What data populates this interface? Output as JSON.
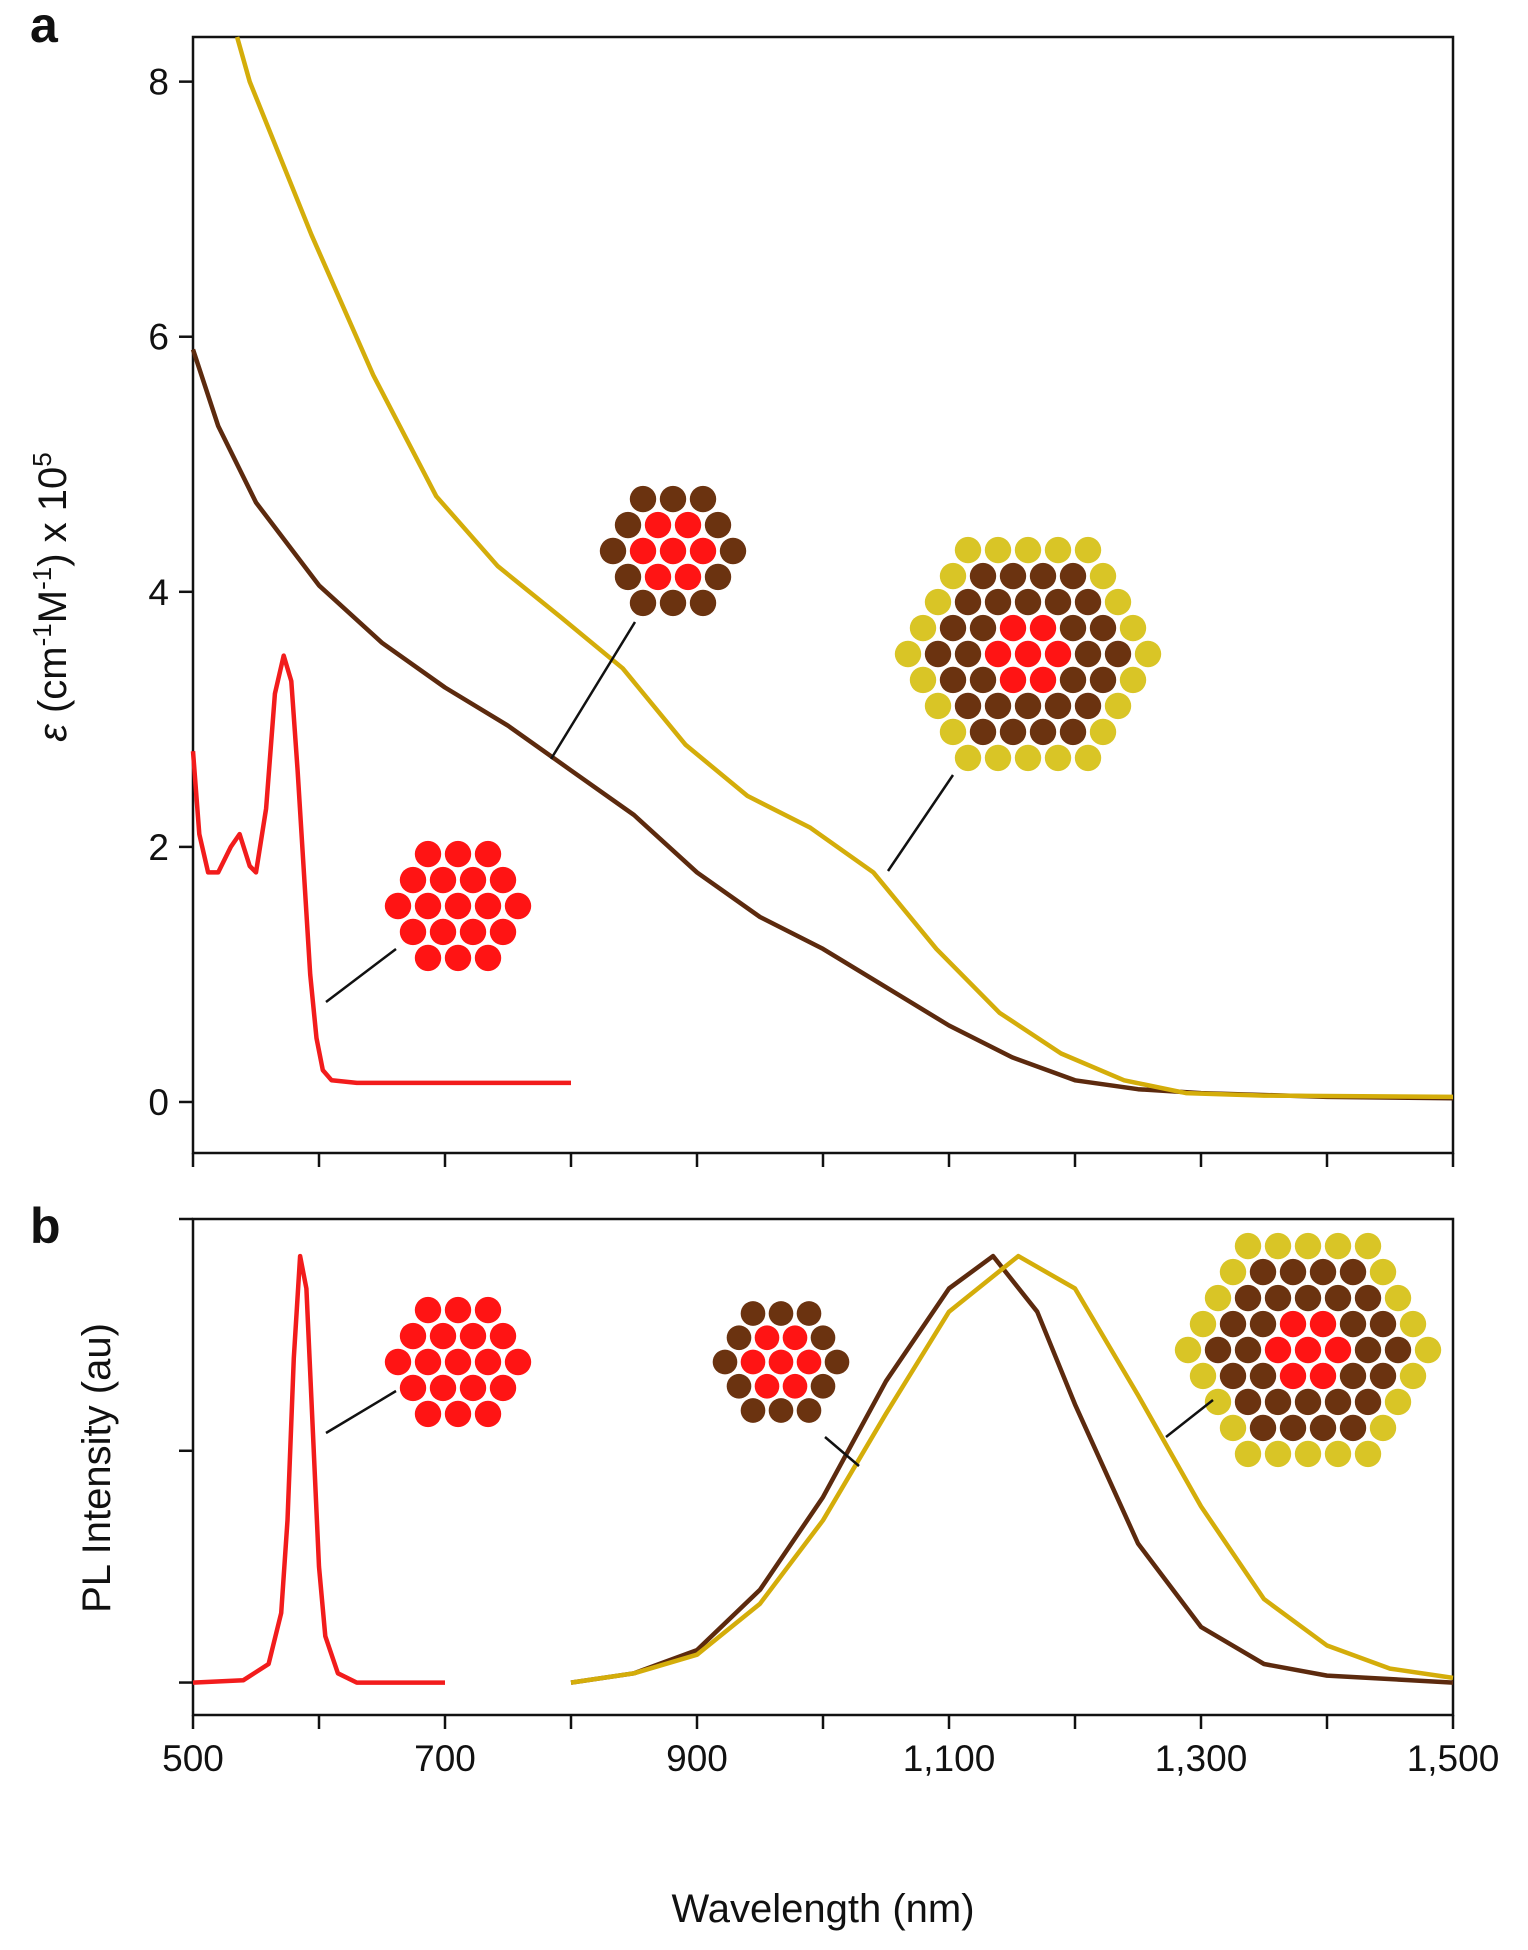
{
  "chart_data": [
    {
      "type": "line",
      "panel_label": "a",
      "ylabel_parts": [
        "ε",
        " (cm",
        "-1",
        "M",
        "-1",
        ") x 10",
        "5"
      ],
      "xlim": [
        500,
        1500
      ],
      "ylim": [
        -0.4,
        8.35
      ],
      "xticks": [
        500,
        600,
        700,
        800,
        900,
        1000,
        1100,
        1200,
        1300,
        1400,
        1500
      ],
      "xtick_labels": false,
      "yticks": [
        0,
        2,
        4,
        6,
        8
      ],
      "series": [
        {
          "color": "#f21c1c",
          "x": [
            500,
            505,
            512,
            520,
            530,
            537,
            545,
            550,
            558,
            565,
            572,
            578,
            583,
            588,
            593,
            598,
            603,
            610,
            630,
            700,
            800
          ],
          "values": [
            2.75,
            2.1,
            1.8,
            1.8,
            2.0,
            2.1,
            1.85,
            1.8,
            2.3,
            3.2,
            3.5,
            3.3,
            2.6,
            1.8,
            1.0,
            0.5,
            0.25,
            0.17,
            0.15,
            0.15,
            0.15
          ]
        },
        {
          "color": "#5c2a0e",
          "x": [
            500,
            520,
            550,
            600,
            650,
            700,
            750,
            800,
            850,
            900,
            950,
            1000,
            1050,
            1100,
            1150,
            1200,
            1250,
            1300,
            1400,
            1500
          ],
          "values": [
            5.9,
            5.3,
            4.7,
            4.05,
            3.6,
            3.25,
            2.95,
            2.6,
            2.25,
            1.8,
            1.45,
            1.2,
            0.9,
            0.6,
            0.35,
            0.17,
            0.1,
            0.07,
            0.04,
            0.03
          ]
        },
        {
          "color": "#d4ad0a",
          "x": [
            535,
            545,
            594,
            643,
            693,
            742,
            792,
            841,
            891,
            940,
            990,
            1040,
            1090,
            1140,
            1189,
            1239,
            1288,
            1350,
            1500
          ],
          "values": [
            8.35,
            8.0,
            6.8,
            5.7,
            4.75,
            4.2,
            3.8,
            3.4,
            2.8,
            2.4,
            2.15,
            1.8,
            1.2,
            0.7,
            0.38,
            0.17,
            0.07,
            0.05,
            0.04
          ]
        }
      ]
    },
    {
      "type": "line",
      "panel_label": "b",
      "ylabel": "PL Intensity (au)",
      "xlabel": "Wavelength (nm)",
      "xlim": [
        500,
        1500
      ],
      "ylim": [
        -0.07,
        1.0
      ],
      "xticks": [
        500,
        700,
        900,
        {
          "value": 1100,
          "label": "1,100"
        },
        {
          "value": 1300,
          "label": "1,300"
        },
        {
          "value": 1500,
          "label": "1,500"
        }
      ],
      "xticks_minor": [
        600,
        800,
        1000,
        1200,
        1400
      ],
      "yticks": [
        0,
        0.5,
        1
      ],
      "ytick_labels": false,
      "series": [
        {
          "color": "#f21c1c",
          "x": [
            500,
            540,
            560,
            570,
            575,
            580,
            585,
            590,
            595,
            600,
            605,
            615,
            630,
            700
          ],
          "values": [
            0,
            0.005,
            0.04,
            0.15,
            0.35,
            0.7,
            0.92,
            0.85,
            0.55,
            0.25,
            0.1,
            0.02,
            0,
            0
          ]
        },
        {
          "color": "#5c2a0e",
          "x": [
            800,
            850,
            900,
            950,
            1000,
            1050,
            1100,
            1135,
            1170,
            1200,
            1250,
            1300,
            1350,
            1400,
            1500
          ],
          "values": [
            0,
            0.02,
            0.07,
            0.2,
            0.4,
            0.65,
            0.85,
            0.92,
            0.8,
            0.6,
            0.3,
            0.12,
            0.04,
            0.015,
            0
          ]
        },
        {
          "color": "#d4ad0a",
          "x": [
            800,
            850,
            900,
            950,
            1000,
            1050,
            1100,
            1155,
            1200,
            1250,
            1300,
            1350,
            1400,
            1450,
            1500
          ],
          "values": [
            0,
            0.02,
            0.06,
            0.17,
            0.35,
            0.58,
            0.8,
            0.92,
            0.85,
            0.62,
            0.38,
            0.18,
            0.08,
            0.03,
            0.01
          ]
        }
      ]
    }
  ]
}
